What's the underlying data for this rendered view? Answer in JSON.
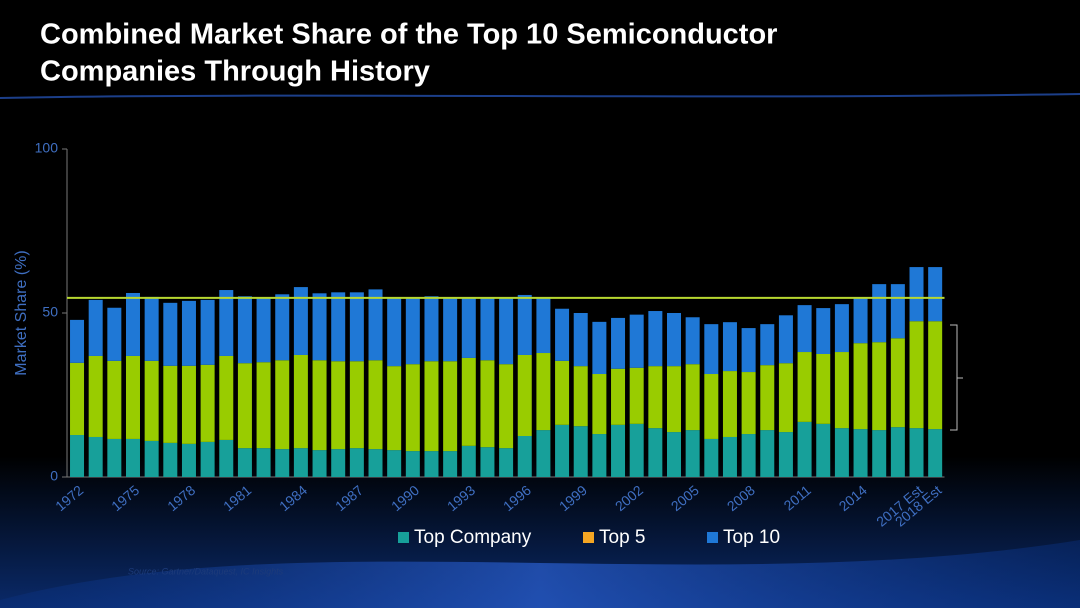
{
  "chart_data": {
    "type": "stacked_bar",
    "title": "Combined Market Share of the Top 10 Semiconductor",
    "title_line2": "Companies Through History",
    "y_label": "Market Share (%)",
    "source": "Source: Gartner/Dataquest, IC Insights",
    "categories": [
      "1972",
      null,
      null,
      "1975",
      null,
      null,
      "1978",
      null,
      null,
      "1981",
      null,
      null,
      "1984",
      null,
      null,
      "1987",
      null,
      null,
      "1990",
      null,
      null,
      "1993",
      null,
      null,
      "1996",
      null,
      null,
      "1999",
      null,
      null,
      "2002",
      null,
      null,
      "2005",
      null,
      null,
      "2008",
      null,
      null,
      "2011",
      null,
      null,
      "2014",
      null,
      null,
      "2017 Est",
      "2018 Est"
    ],
    "series": [
      {
        "name": "Top Company",
        "color": "#17a09a",
        "values": [
          12.8,
          12.2,
          11.6,
          11.6,
          11.0,
          10.4,
          10.1,
          10.7,
          11.3,
          8.8,
          8.8,
          8.5,
          8.8,
          8.2,
          8.5,
          8.8,
          8.5,
          8.2,
          7.9,
          7.9,
          7.9,
          9.5,
          9.1,
          8.8,
          12.5,
          14.3,
          15.9,
          15.5,
          13.1,
          15.9,
          16.2,
          14.9,
          13.7,
          14.3,
          11.6,
          12.2,
          13.1,
          14.3,
          13.7,
          16.8,
          16.2,
          14.9,
          14.6,
          14.3,
          15.2,
          14.9,
          14.6
        ]
      },
      {
        "name": "Top 5",
        "color": "#99cc00",
        "legend_color": "#f5a623",
        "values": [
          22.0,
          24.7,
          23.8,
          25.3,
          24.4,
          23.5,
          23.8,
          23.5,
          25.6,
          25.9,
          26.2,
          27.1,
          28.4,
          27.4,
          26.8,
          26.5,
          27.1,
          25.6,
          26.5,
          27.4,
          27.4,
          26.8,
          26.5,
          25.6,
          24.7,
          23.5,
          19.5,
          18.3,
          18.3,
          17.1,
          17.1,
          18.9,
          20.1,
          20.1,
          19.8,
          20.1,
          18.9,
          19.8,
          21.0,
          21.3,
          21.3,
          23.2,
          26.2,
          26.8,
          27.1,
          32.6,
          32.9
        ]
      },
      {
        "name": "Top 10",
        "color": "#1f78d6",
        "values": [
          13.1,
          17.1,
          16.2,
          19.2,
          19.5,
          19.2,
          19.8,
          19.8,
          20.1,
          20.4,
          19.5,
          20.1,
          20.7,
          20.4,
          21.0,
          21.0,
          21.6,
          20.7,
          20.1,
          19.8,
          19.2,
          18.3,
          18.9,
          20.4,
          18.3,
          16.8,
          15.9,
          16.2,
          15.9,
          15.5,
          16.2,
          16.8,
          16.2,
          14.3,
          15.2,
          14.9,
          13.4,
          12.5,
          14.6,
          14.3,
          14.0,
          14.6,
          13.7,
          17.7,
          16.5,
          16.5,
          16.5
        ]
      }
    ],
    "reference_line": {
      "value": 54.6,
      "color": "#b8d830"
    },
    "ylim": [
      0,
      100
    ],
    "yticks": [
      0,
      50,
      100
    ]
  }
}
